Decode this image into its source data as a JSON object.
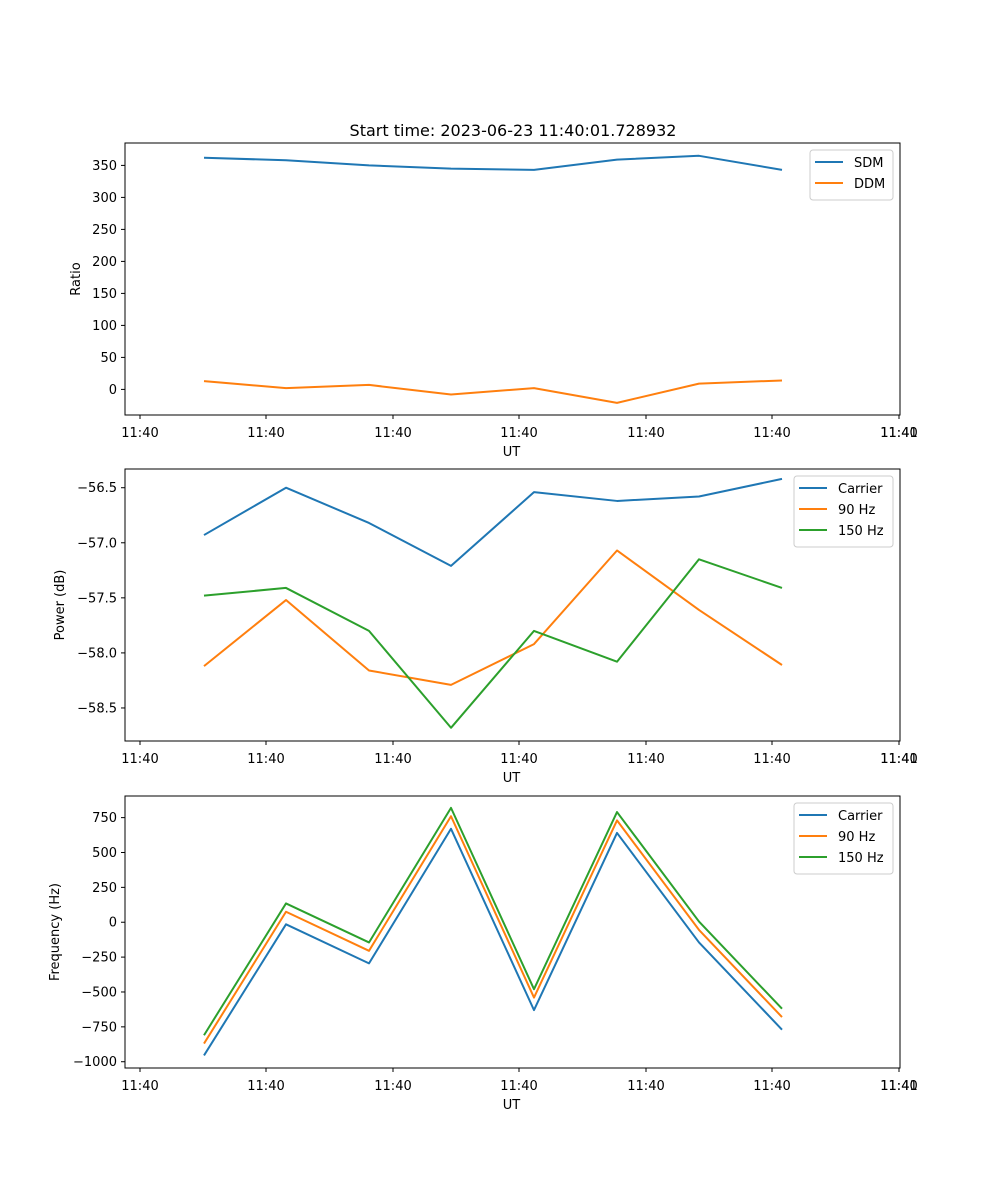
{
  "figure_title": "Start time: 2023-06-23 11:40:01.728932",
  "chart_data": [
    {
      "type": "line",
      "title": "Start time: 2023-06-23 11:40:01.728932",
      "xlabel": "UT",
      "ylabel": "Ratio",
      "x_tick_labels": [
        "11:40",
        "11:40",
        "11:40",
        "11:40",
        "11:40",
        "11:40",
        "11:40",
        "11:41"
      ],
      "yticks": [
        0,
        50,
        100,
        150,
        200,
        250,
        300,
        350
      ],
      "ylim": [
        -40,
        385
      ],
      "legend_position": "upper right",
      "grid": false,
      "series": [
        {
          "name": "SDM",
          "color": "#1f77b4",
          "values": [
            362,
            358,
            350,
            345,
            343,
            359,
            365,
            343
          ]
        },
        {
          "name": "DDM",
          "color": "#ff7f0e",
          "values": [
            13,
            2,
            7,
            -8,
            2,
            -21,
            9,
            14
          ]
        }
      ]
    },
    {
      "type": "line",
      "xlabel": "UT",
      "ylabel": "Power (dB)",
      "x_tick_labels": [
        "11:40",
        "11:40",
        "11:40",
        "11:40",
        "11:40",
        "11:40",
        "11:40",
        "11:41"
      ],
      "yticks": [
        -58.5,
        -58.0,
        -57.5,
        -57.0,
        -56.5
      ],
      "ytick_labels": [
        "−58.5",
        "−58.0",
        "−57.5",
        "−57.0",
        "−56.5"
      ],
      "ylim": [
        -58.8,
        -56.33
      ],
      "legend_position": "upper right",
      "grid": false,
      "series": [
        {
          "name": "Carrier",
          "color": "#1f77b4",
          "values": [
            -56.93,
            -56.5,
            -56.82,
            -57.21,
            -56.54,
            -56.62,
            -56.58,
            -56.42
          ]
        },
        {
          "name": "90 Hz",
          "color": "#ff7f0e",
          "values": [
            -58.12,
            -57.52,
            -58.16,
            -58.29,
            -57.92,
            -57.07,
            -57.61,
            -58.11
          ]
        },
        {
          "name": "150 Hz",
          "color": "#2ca02c",
          "values": [
            -57.48,
            -57.41,
            -57.8,
            -58.68,
            -57.8,
            -58.08,
            -57.15,
            -57.41
          ]
        }
      ]
    },
    {
      "type": "line",
      "xlabel": "UT",
      "ylabel": "Frequency (Hz)",
      "x_tick_labels": [
        "11:40",
        "11:40",
        "11:40",
        "11:40",
        "11:40",
        "11:40",
        "11:40",
        "11:41"
      ],
      "yticks": [
        -1000,
        -750,
        -500,
        -250,
        0,
        250,
        500,
        750
      ],
      "ytick_labels": [
        "−1000",
        "−750",
        "−500",
        "−250",
        "0",
        "250",
        "500",
        "750"
      ],
      "ylim": [
        -1045,
        905
      ],
      "legend_position": "upper right",
      "grid": false,
      "series": [
        {
          "name": "Carrier",
          "color": "#1f77b4",
          "values": [
            -955,
            -15,
            -295,
            670,
            -630,
            640,
            -145,
            -770
          ]
        },
        {
          "name": "90 Hz",
          "color": "#ff7f0e",
          "values": [
            -870,
            75,
            -205,
            760,
            -540,
            730,
            -55,
            -680
          ]
        },
        {
          "name": "150 Hz",
          "color": "#2ca02c",
          "values": [
            -810,
            135,
            -145,
            820,
            -480,
            790,
            5,
            -620
          ]
        }
      ]
    }
  ]
}
